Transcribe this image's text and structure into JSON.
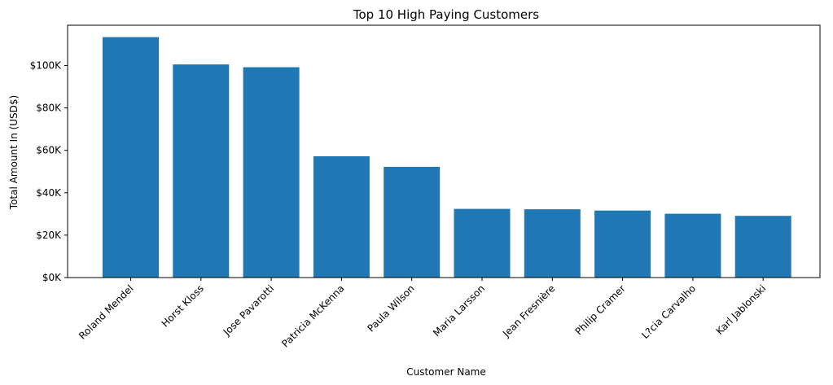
{
  "chart_data": {
    "type": "bar",
    "title": "Top 10 High Paying Customers",
    "xlabel": "Customer Name",
    "ylabel": "Total Amount In (USD$)",
    "categories": [
      "Roland Mendel",
      "Horst Kloss",
      "Jose Pavarotti",
      "Patricia McKenna",
      "Paula Wilson",
      "Maria Larsson",
      "Jean Fresnière",
      "Philip Cramer",
      "L?cia Carvalho",
      "Karl Jablonski"
    ],
    "values": [
      113400,
      100500,
      99200,
      57200,
      52200,
      32400,
      32200,
      31600,
      30100,
      29100
    ],
    "ylim": [
      0,
      119000
    ],
    "yticks": [
      0,
      20000,
      40000,
      60000,
      80000,
      100000
    ],
    "ytick_labels": [
      "$0K",
      "$20K",
      "$40K",
      "$60K",
      "$80K",
      "$100K"
    ],
    "bar_color": "#1f77b4",
    "grid": false,
    "legend": false
  }
}
